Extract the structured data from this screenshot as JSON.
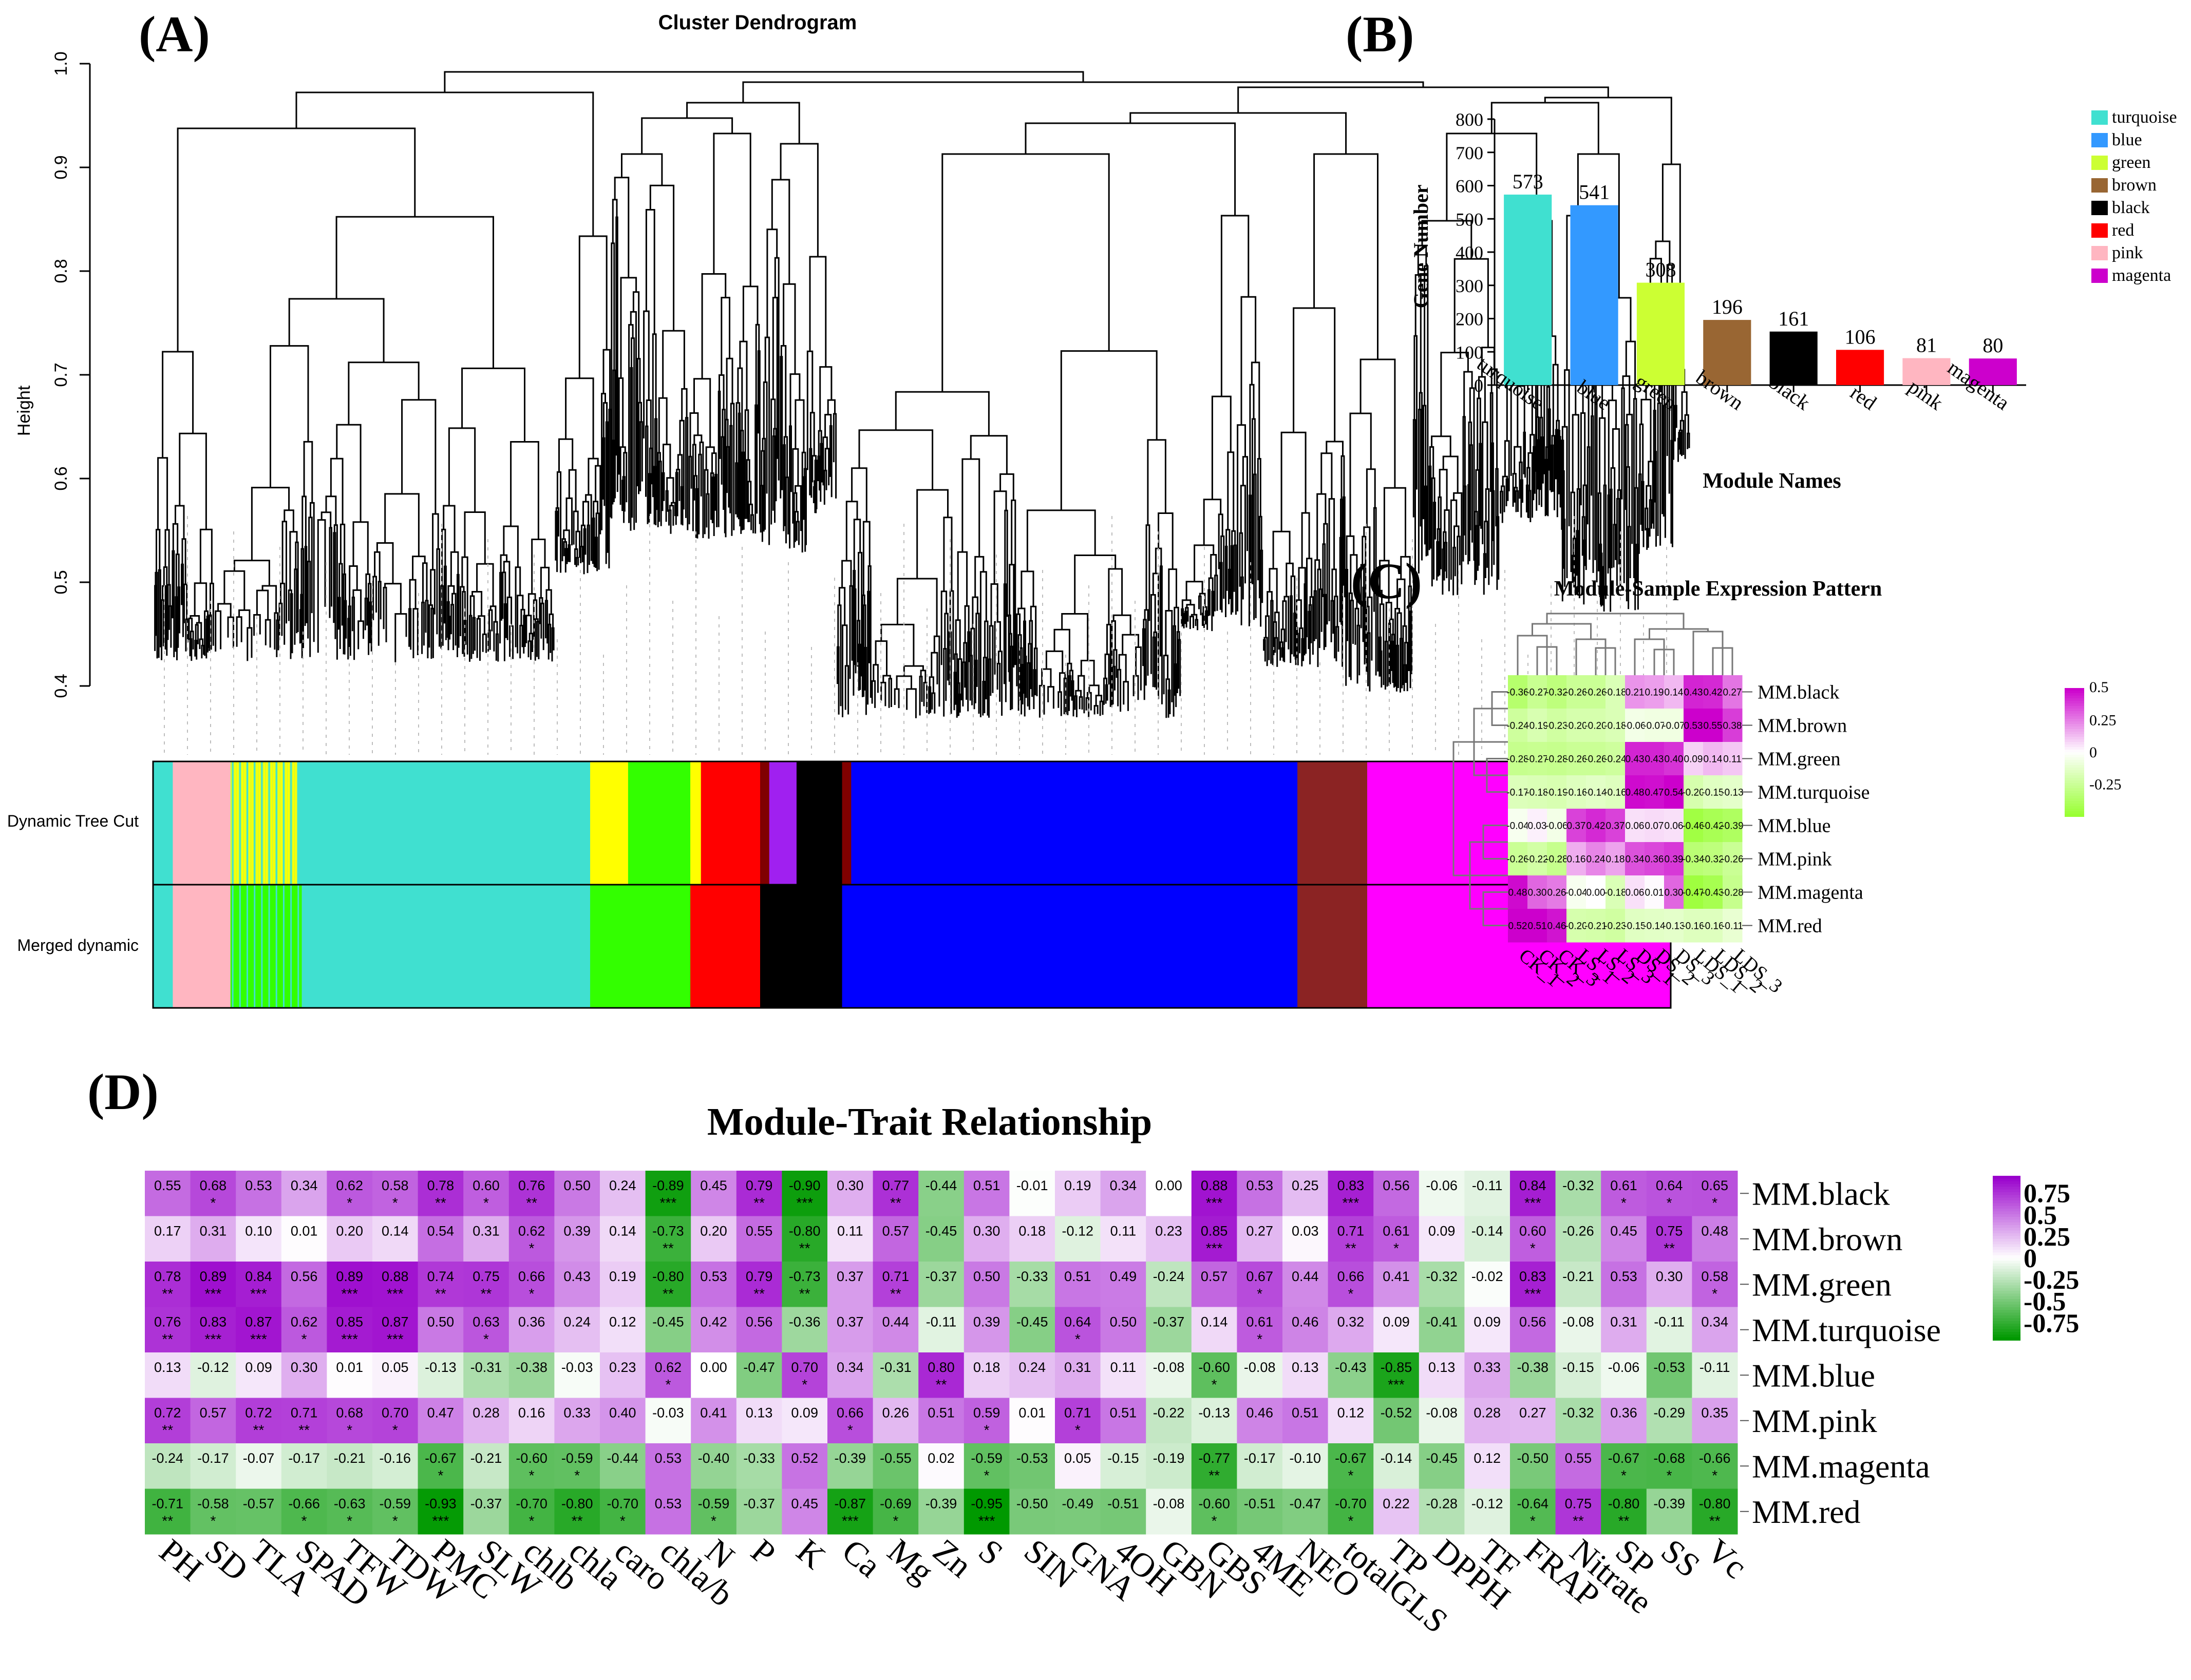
{
  "panels": {
    "a": {
      "label": "(A)",
      "title": "Cluster Dendrogram",
      "ylabel": "Height",
      "yticks": [
        "0.4",
        "0.5",
        "0.6",
        "0.7",
        "0.8",
        "0.9",
        "1.0"
      ],
      "row_labels": [
        "Dynamic Tree Cut",
        "Merged dynamic"
      ]
    },
    "b": {
      "label": "(B)"
    },
    "c": {
      "label": "(C)"
    },
    "d": {
      "label": "(D)"
    }
  },
  "chart_data": [
    {
      "type": "bar",
      "title": "",
      "xlabel": "Module Names",
      "ylabel": "Gene Number",
      "ylim": [
        0,
        800
      ],
      "yticks": [
        0,
        100,
        200,
        300,
        400,
        500,
        600,
        700,
        800
      ],
      "categories": [
        "turquoise",
        "blue",
        "green",
        "brown",
        "black",
        "red",
        "pink",
        "magenta"
      ],
      "values": [
        573,
        541,
        308,
        196,
        161,
        106,
        81,
        80
      ],
      "colors": [
        "#40E0D0",
        "#3399FF",
        "#CCFF33",
        "#996633",
        "#000000",
        "#FF0000",
        "#FFB6C1",
        "#CC00CC"
      ],
      "legend": [
        "turquoise",
        "blue",
        "green",
        "brown",
        "black",
        "red",
        "pink",
        "magenta"
      ]
    },
    {
      "type": "heatmap",
      "title": "Module-Sample Expression Pattern",
      "rows": [
        "MM.black",
        "MM.brown",
        "MM.green",
        "MM.turquoise",
        "MM.blue",
        "MM.pink",
        "MM.magenta",
        "MM.red"
      ],
      "columns": [
        "CK_1",
        "CK_2",
        "CK_3",
        "LS_1",
        "LS_2",
        "LS_3",
        "DS_1",
        "DS_2",
        "DS_3",
        "LDS_1",
        "LDS_2",
        "LDS_3"
      ],
      "values": [
        [
          -0.36,
          -0.27,
          -0.32,
          -0.26,
          -0.26,
          -0.18,
          0.21,
          0.19,
          0.14,
          0.43,
          0.42,
          0.27
        ],
        [
          -0.24,
          -0.19,
          -0.23,
          -0.2,
          -0.2,
          -0.18,
          -0.06,
          -0.07,
          -0.07,
          0.53,
          0.55,
          0.38
        ],
        [
          -0.28,
          -0.27,
          -0.28,
          -0.26,
          -0.26,
          -0.24,
          0.43,
          0.43,
          0.4,
          0.09,
          0.14,
          0.11
        ],
        [
          -0.17,
          -0.18,
          -0.19,
          -0.16,
          -0.14,
          -0.16,
          0.48,
          0.47,
          0.54,
          -0.2,
          -0.15,
          -0.13
        ],
        [
          -0.04,
          0.03,
          -0.06,
          0.37,
          0.42,
          0.37,
          0.06,
          0.07,
          0.06,
          -0.46,
          -0.42,
          -0.39
        ],
        [
          -0.26,
          -0.22,
          -0.28,
          0.16,
          0.24,
          0.18,
          0.34,
          0.36,
          0.39,
          -0.34,
          -0.32,
          -0.26
        ],
        [
          0.48,
          0.3,
          0.26,
          -0.04,
          0.0,
          -0.18,
          0.06,
          0.01,
          0.3,
          -0.47,
          -0.43,
          -0.28
        ],
        [
          0.52,
          0.51,
          0.46,
          -0.2,
          -0.21,
          -0.23,
          -0.15,
          -0.14,
          -0.13,
          -0.16,
          -0.16,
          -0.11
        ]
      ],
      "legend_ticks": [
        "0.5",
        "0.25",
        "0",
        "-0.25"
      ],
      "range": [
        -0.5,
        0.5
      ]
    },
    {
      "type": "heatmap",
      "title": "Module-Trait Relationship",
      "rows": [
        "MM.black",
        "MM.brown",
        "MM.green",
        "MM.turquoise",
        "MM.blue",
        "MM.pink",
        "MM.magenta",
        "MM.red"
      ],
      "columns": [
        "PH",
        "SD",
        "TLA",
        "SPAD",
        "TFW",
        "TDW",
        "PMC",
        "SLW",
        "chlb",
        "chla",
        "caro",
        "chla/b",
        "N",
        "P",
        "K",
        "Ca",
        "Mg",
        "Zn",
        "S",
        "SIN",
        "GNA",
        "4OH",
        "GBN",
        "GBS",
        "4ME",
        "NEO",
        "totalGLS",
        "TP",
        "DPPH",
        "TF",
        "FRAP",
        "Nitrate",
        "SP",
        "SS",
        "Vc"
      ],
      "values": [
        [
          0.55,
          0.68,
          0.53,
          0.34,
          0.62,
          0.58,
          0.78,
          0.6,
          0.76,
          0.5,
          0.24,
          -0.89,
          0.45,
          0.79,
          -0.9,
          0.3,
          0.77,
          -0.44,
          0.51,
          -0.01,
          0.19,
          0.34,
          0.0,
          0.88,
          0.53,
          0.25,
          0.83,
          0.56,
          -0.06,
          -0.11,
          0.84,
          -0.32,
          0.61,
          0.64,
          0.65
        ],
        [
          0.17,
          0.31,
          0.1,
          0.01,
          0.2,
          0.14,
          0.54,
          0.31,
          0.62,
          0.39,
          0.14,
          -0.73,
          0.2,
          0.55,
          -0.8,
          0.11,
          0.57,
          -0.45,
          0.3,
          0.18,
          -0.12,
          0.11,
          0.23,
          0.85,
          0.27,
          0.03,
          0.71,
          0.61,
          0.09,
          -0.14,
          0.6,
          -0.26,
          0.45,
          0.75,
          0.48
        ],
        [
          0.78,
          0.89,
          0.84,
          0.56,
          0.89,
          0.88,
          0.74,
          0.75,
          0.66,
          0.43,
          0.19,
          -0.8,
          0.53,
          0.79,
          -0.73,
          0.37,
          0.71,
          -0.37,
          0.5,
          -0.33,
          0.51,
          0.49,
          -0.24,
          0.57,
          0.67,
          0.44,
          0.66,
          0.41,
          -0.32,
          -0.02,
          0.83,
          -0.21,
          0.53,
          0.3,
          0.58
        ],
        [
          0.76,
          0.83,
          0.87,
          0.62,
          0.85,
          0.87,
          0.5,
          0.63,
          0.36,
          0.24,
          0.12,
          -0.45,
          0.42,
          0.56,
          -0.36,
          0.37,
          0.44,
          -0.11,
          0.39,
          -0.45,
          0.64,
          0.5,
          -0.37,
          0.14,
          0.61,
          0.46,
          0.32,
          0.09,
          -0.41,
          0.09,
          0.56,
          -0.08,
          0.31,
          -0.11,
          0.34
        ],
        [
          0.13,
          -0.12,
          0.09,
          0.3,
          0.01,
          0.05,
          -0.13,
          -0.31,
          -0.38,
          -0.03,
          0.23,
          0.62,
          -0.0,
          -0.47,
          0.7,
          0.34,
          -0.31,
          0.8,
          0.18,
          0.24,
          0.31,
          0.11,
          -0.08,
          -0.6,
          -0.08,
          0.13,
          -0.43,
          -0.85,
          0.13,
          0.33,
          -0.38,
          -0.15,
          -0.06,
          -0.53,
          -0.11
        ],
        [
          0.72,
          0.57,
          0.72,
          0.71,
          0.68,
          0.7,
          0.47,
          0.28,
          0.16,
          0.33,
          0.4,
          -0.03,
          0.41,
          0.13,
          0.09,
          0.66,
          0.26,
          0.51,
          0.59,
          0.01,
          0.71,
          0.51,
          -0.22,
          -0.13,
          0.46,
          0.51,
          0.12,
          -0.52,
          -0.08,
          0.28,
          0.27,
          -0.32,
          0.36,
          -0.29,
          0.35
        ],
        [
          -0.24,
          -0.17,
          -0.07,
          -0.17,
          -0.21,
          -0.16,
          -0.67,
          -0.21,
          -0.6,
          -0.59,
          -0.44,
          0.53,
          -0.4,
          -0.33,
          0.52,
          -0.39,
          -0.55,
          0.02,
          -0.59,
          -0.53,
          0.05,
          -0.15,
          -0.19,
          -0.77,
          -0.17,
          -0.1,
          -0.67,
          -0.14,
          -0.45,
          0.12,
          -0.5,
          0.55,
          -0.67,
          -0.68,
          -0.66
        ],
        [
          -0.71,
          -0.58,
          -0.57,
          -0.66,
          -0.63,
          -0.59,
          -0.93,
          -0.37,
          -0.7,
          -0.8,
          -0.7,
          0.53,
          -0.59,
          -0.37,
          0.45,
          -0.87,
          -0.69,
          -0.39,
          -0.95,
          -0.5,
          -0.49,
          -0.51,
          -0.08,
          -0.6,
          -0.51,
          -0.47,
          -0.7,
          0.22,
          -0.28,
          -0.12,
          -0.64,
          0.75,
          -0.8,
          -0.39,
          -0.8
        ]
      ],
      "stars": [
        [
          "",
          "*",
          "",
          "",
          "*",
          "*",
          "**",
          "*",
          "**",
          "",
          "",
          "***",
          "",
          "**",
          "***",
          "",
          "**",
          "",
          "",
          "",
          "",
          "",
          "",
          "***",
          "",
          "",
          "***",
          "",
          "",
          "",
          "***",
          "",
          "*",
          "*",
          "*"
        ],
        [
          "",
          "",
          "",
          "",
          "",
          "",
          "",
          "",
          "*",
          "",
          "",
          "**",
          "",
          "",
          "**",
          "",
          "",
          "",
          "",
          "",
          "",
          "",
          "",
          "***",
          "",
          "",
          "**",
          "*",
          "",
          "",
          "*",
          "",
          "",
          "**",
          ""
        ],
        [
          "**",
          "***",
          "***",
          "",
          "***",
          "***",
          "**",
          "**",
          "*",
          "",
          "",
          "**",
          "",
          "**",
          "**",
          "",
          "**",
          "",
          "",
          "",
          "",
          "",
          "",
          "",
          "*",
          "",
          "*",
          "",
          "",
          "",
          "***",
          "",
          "",
          "",
          "*"
        ],
        [
          "**",
          "***",
          "***",
          "*",
          "***",
          "***",
          "",
          "*",
          "",
          "",
          "",
          "",
          "",
          "",
          "",
          "",
          "",
          "",
          "",
          "",
          "*",
          "",
          "",
          "",
          "*",
          "",
          "",
          "",
          "",
          "",
          "",
          "",
          "",
          "",
          ""
        ],
        [
          "",
          "",
          "",
          "",
          "",
          "",
          "",
          "",
          "",
          "",
          "",
          "*",
          "",
          "",
          "*",
          "",
          "",
          "**",
          "",
          "",
          "",
          "",
          "",
          "*",
          "",
          "",
          "",
          "***",
          "",
          "",
          "",
          "",
          "",
          "",
          ""
        ],
        [
          "**",
          "",
          "**",
          "**",
          "*",
          "*",
          "",
          "",
          "",
          "",
          "",
          "",
          "",
          "",
          "",
          "*",
          "",
          "",
          "*",
          "",
          "*",
          "",
          "",
          "",
          "",
          "",
          "",
          "",
          "",
          "",
          "",
          "",
          "",
          "",
          ""
        ],
        [
          "",
          "",
          "",
          "",
          "",
          "",
          "*",
          "",
          "*",
          "*",
          "",
          "",
          "",
          "",
          "",
          "",
          "",
          "",
          "*",
          "",
          "",
          "",
          "",
          "**",
          "",
          "",
          "*",
          "",
          "",
          "",
          "",
          "",
          "*",
          "*",
          "*"
        ],
        [
          "**",
          "*",
          "",
          "*",
          "*",
          "*",
          "***",
          "",
          "*",
          "**",
          "*",
          "",
          "*",
          "",
          "",
          "***",
          "*",
          "",
          "***",
          "",
          "",
          "",
          "",
          "*",
          "",
          "",
          "*",
          "",
          "",
          "",
          "*",
          "**",
          "**",
          "",
          "**"
        ]
      ],
      "legend_ticks": [
        "0.75",
        "0.5",
        "0.25",
        "0",
        "-0.25",
        "-0.5",
        "-0.75"
      ],
      "range": [
        -1,
        1
      ]
    }
  ]
}
